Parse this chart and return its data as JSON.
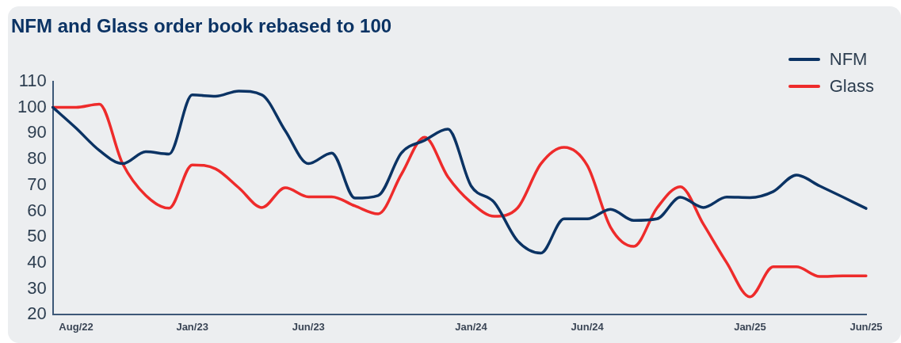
{
  "chart_data": {
    "type": "line",
    "title": "NFM and Glass order book rebased to 100",
    "categories": [
      null,
      "Aug/22",
      null,
      null,
      null,
      null,
      "Jan/23",
      null,
      null,
      null,
      null,
      "Jun/23",
      null,
      null,
      null,
      null,
      null,
      null,
      "Jan/24",
      null,
      null,
      null,
      null,
      "Jun/24",
      null,
      null,
      null,
      null,
      null,
      null,
      "Jan/25",
      null,
      null,
      null,
      null,
      "Jun/25"
    ],
    "series": [
      {
        "name": "NFM",
        "color": "#0b3364",
        "values": [
          100,
          92,
          83.4,
          78.3,
          82.9,
          82,
          104.8,
          104.3,
          106.3,
          104.8,
          91,
          78.3,
          82.4,
          65,
          66,
          82.4,
          87.3,
          91.6,
          69.7,
          63.3,
          48.5,
          43.8,
          57,
          57,
          60.7,
          56.4,
          57,
          65.3,
          61.4,
          65.4,
          65.2,
          67.5,
          73.9,
          69.7,
          65.4,
          61
        ]
      },
      {
        "name": "Glass",
        "color": "#ee2b2b",
        "values": [
          100,
          100,
          101.2,
          78.3,
          66,
          61.1,
          77.8,
          76.3,
          69,
          61.4,
          69,
          65.5,
          65.5,
          62,
          58.9,
          74.2,
          88.5,
          73.2,
          63.3,
          58,
          61.2,
          78.2,
          84.6,
          77.6,
          53.8,
          46.4,
          61.2,
          69.4,
          54.9,
          40.1,
          26.9,
          38.5,
          38.5,
          34.8,
          35,
          35
        ]
      }
    ],
    "ylim": [
      20,
      110
    ],
    "yticks": [
      20,
      30,
      40,
      50,
      60,
      70,
      80,
      90,
      100,
      110
    ],
    "grid": false,
    "legend": "top right",
    "marker": "none",
    "line_style": "solid"
  }
}
